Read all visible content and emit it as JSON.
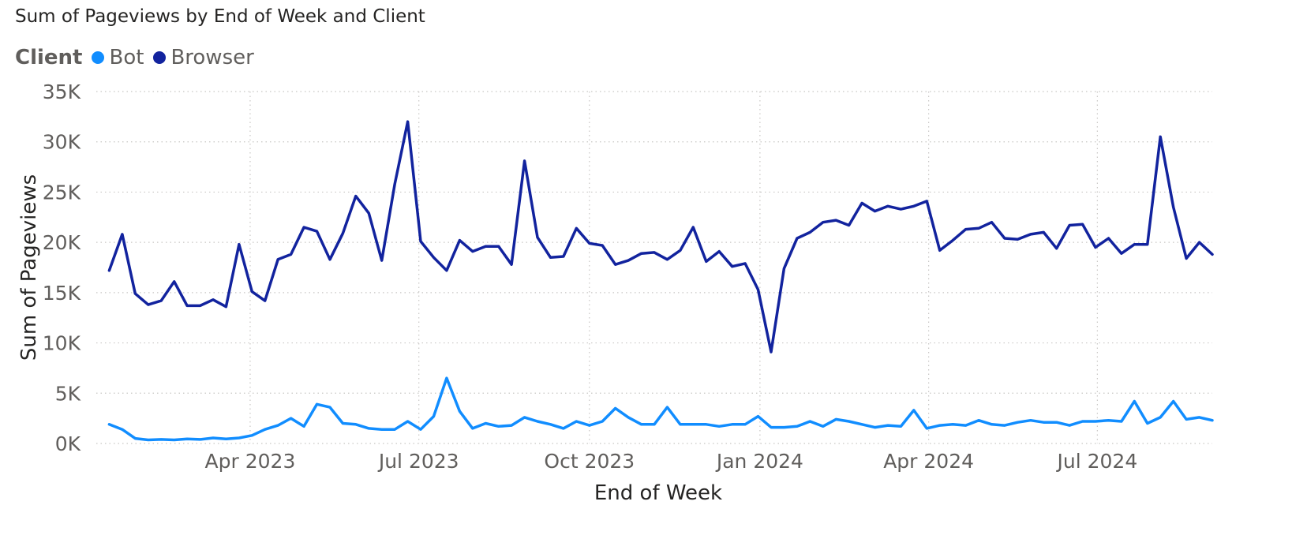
{
  "chart_data": {
    "type": "line",
    "title": "Sum of Pageviews by End of Week and Client",
    "legend_title": "Client",
    "legend_placement": "top-left",
    "xlabel": "End of Week",
    "ylabel": "Sum of Pageviews",
    "ylim": [
      0,
      35000
    ],
    "y_ticks": [
      {
        "value": 0,
        "label": "0K"
      },
      {
        "value": 5000,
        "label": "5K"
      },
      {
        "value": 10000,
        "label": "10K"
      },
      {
        "value": 15000,
        "label": "15K"
      },
      {
        "value": 20000,
        "label": "20K"
      },
      {
        "value": 25000,
        "label": "25K"
      },
      {
        "value": 30000,
        "label": "30K"
      },
      {
        "value": 35000,
        "label": "35K"
      }
    ],
    "x_range": [
      "2023-01-08",
      "2024-09-01"
    ],
    "x_ticks": [
      {
        "date": "2023-04-01",
        "label": "Apr 2023"
      },
      {
        "date": "2023-07-01",
        "label": "Jul 2023"
      },
      {
        "date": "2023-10-01",
        "label": "Oct 2023"
      },
      {
        "date": "2024-01-01",
        "label": "Jan 2024"
      },
      {
        "date": "2024-04-01",
        "label": "Apr 2024"
      },
      {
        "date": "2024-07-01",
        "label": "Jul 2024"
      }
    ],
    "grid": true,
    "x": [
      "2023-01-15",
      "2023-01-22",
      "2023-01-29",
      "2023-02-05",
      "2023-02-12",
      "2023-02-19",
      "2023-02-26",
      "2023-03-05",
      "2023-03-12",
      "2023-03-19",
      "2023-03-26",
      "2023-04-02",
      "2023-04-09",
      "2023-04-16",
      "2023-04-23",
      "2023-04-30",
      "2023-05-07",
      "2023-05-14",
      "2023-05-21",
      "2023-05-28",
      "2023-06-04",
      "2023-06-11",
      "2023-06-18",
      "2023-06-25",
      "2023-07-02",
      "2023-07-09",
      "2023-07-16",
      "2023-07-23",
      "2023-07-30",
      "2023-08-06",
      "2023-08-13",
      "2023-08-20",
      "2023-08-27",
      "2023-09-03",
      "2023-09-10",
      "2023-09-17",
      "2023-09-24",
      "2023-10-01",
      "2023-10-08",
      "2023-10-15",
      "2023-10-22",
      "2023-10-29",
      "2023-11-05",
      "2023-11-12",
      "2023-11-19",
      "2023-11-26",
      "2023-12-03",
      "2023-12-10",
      "2023-12-17",
      "2023-12-24",
      "2023-12-31",
      "2024-01-07",
      "2024-01-14",
      "2024-01-21",
      "2024-01-28",
      "2024-02-04",
      "2024-02-11",
      "2024-02-18",
      "2024-02-25",
      "2024-03-03",
      "2024-03-10",
      "2024-03-17",
      "2024-03-24",
      "2024-03-31",
      "2024-04-07",
      "2024-04-14",
      "2024-04-21",
      "2024-04-28",
      "2024-05-05",
      "2024-05-12",
      "2024-05-19",
      "2024-05-26",
      "2024-06-02",
      "2024-06-09",
      "2024-06-16",
      "2024-06-23",
      "2024-06-30",
      "2024-07-07",
      "2024-07-14",
      "2024-07-21",
      "2024-07-28",
      "2024-08-04",
      "2024-08-11",
      "2024-08-18",
      "2024-08-25",
      "2024-09-01"
    ],
    "series": [
      {
        "name": "Bot",
        "color": "#118dff",
        "values": [
          1900,
          1400,
          500,
          350,
          400,
          350,
          450,
          400,
          550,
          450,
          550,
          800,
          1400,
          1800,
          2500,
          1700,
          3900,
          3600,
          2000,
          1900,
          1500,
          1400,
          1400,
          2200,
          1400,
          2700,
          6500,
          3200,
          1500,
          2000,
          1700,
          1800,
          2600,
          2200,
          1900,
          1500,
          2200,
          1800,
          2200,
          3500,
          2600,
          1900,
          1900,
          3600,
          1900,
          1900,
          1900,
          1700,
          1900,
          1900,
          2700,
          1600,
          1600,
          1700,
          2200,
          1700,
          2400,
          2200,
          1900,
          1600,
          1800,
          1700,
          3300,
          1500,
          1800,
          1900,
          1800,
          2300,
          1900,
          1800,
          2100,
          2300,
          2100,
          2100,
          1800,
          2200,
          2200,
          2300,
          2200,
          4200,
          2000,
          2600,
          4200,
          2400,
          2600,
          2300
        ]
      },
      {
        "name": "Browser",
        "color": "#12239e",
        "values": [
          17200,
          20800,
          14900,
          13800,
          14200,
          16100,
          13700,
          13700,
          14300,
          13600,
          19800,
          15100,
          14200,
          18300,
          18800,
          21500,
          21100,
          18300,
          20900,
          24600,
          22900,
          18200,
          25800,
          32000,
          20100,
          18500,
          17200,
          20200,
          19100,
          19600,
          19600,
          17800,
          28100,
          20500,
          18500,
          18600,
          21400,
          19900,
          19700,
          17800,
          18200,
          18900,
          19000,
          18300,
          19200,
          21500,
          18100,
          19100,
          17600,
          17900,
          15300,
          9100,
          17400,
          20400,
          21000,
          22000,
          22200,
          21700,
          23900,
          23100,
          23600,
          23300,
          23600,
          24100,
          19200,
          20200,
          21300,
          21400,
          22000,
          20400,
          20300,
          20800,
          21000,
          19400,
          21700,
          21800,
          19500,
          20400,
          18900,
          19800,
          19800,
          30500,
          23500,
          18400,
          20000,
          18800
        ]
      }
    ]
  }
}
